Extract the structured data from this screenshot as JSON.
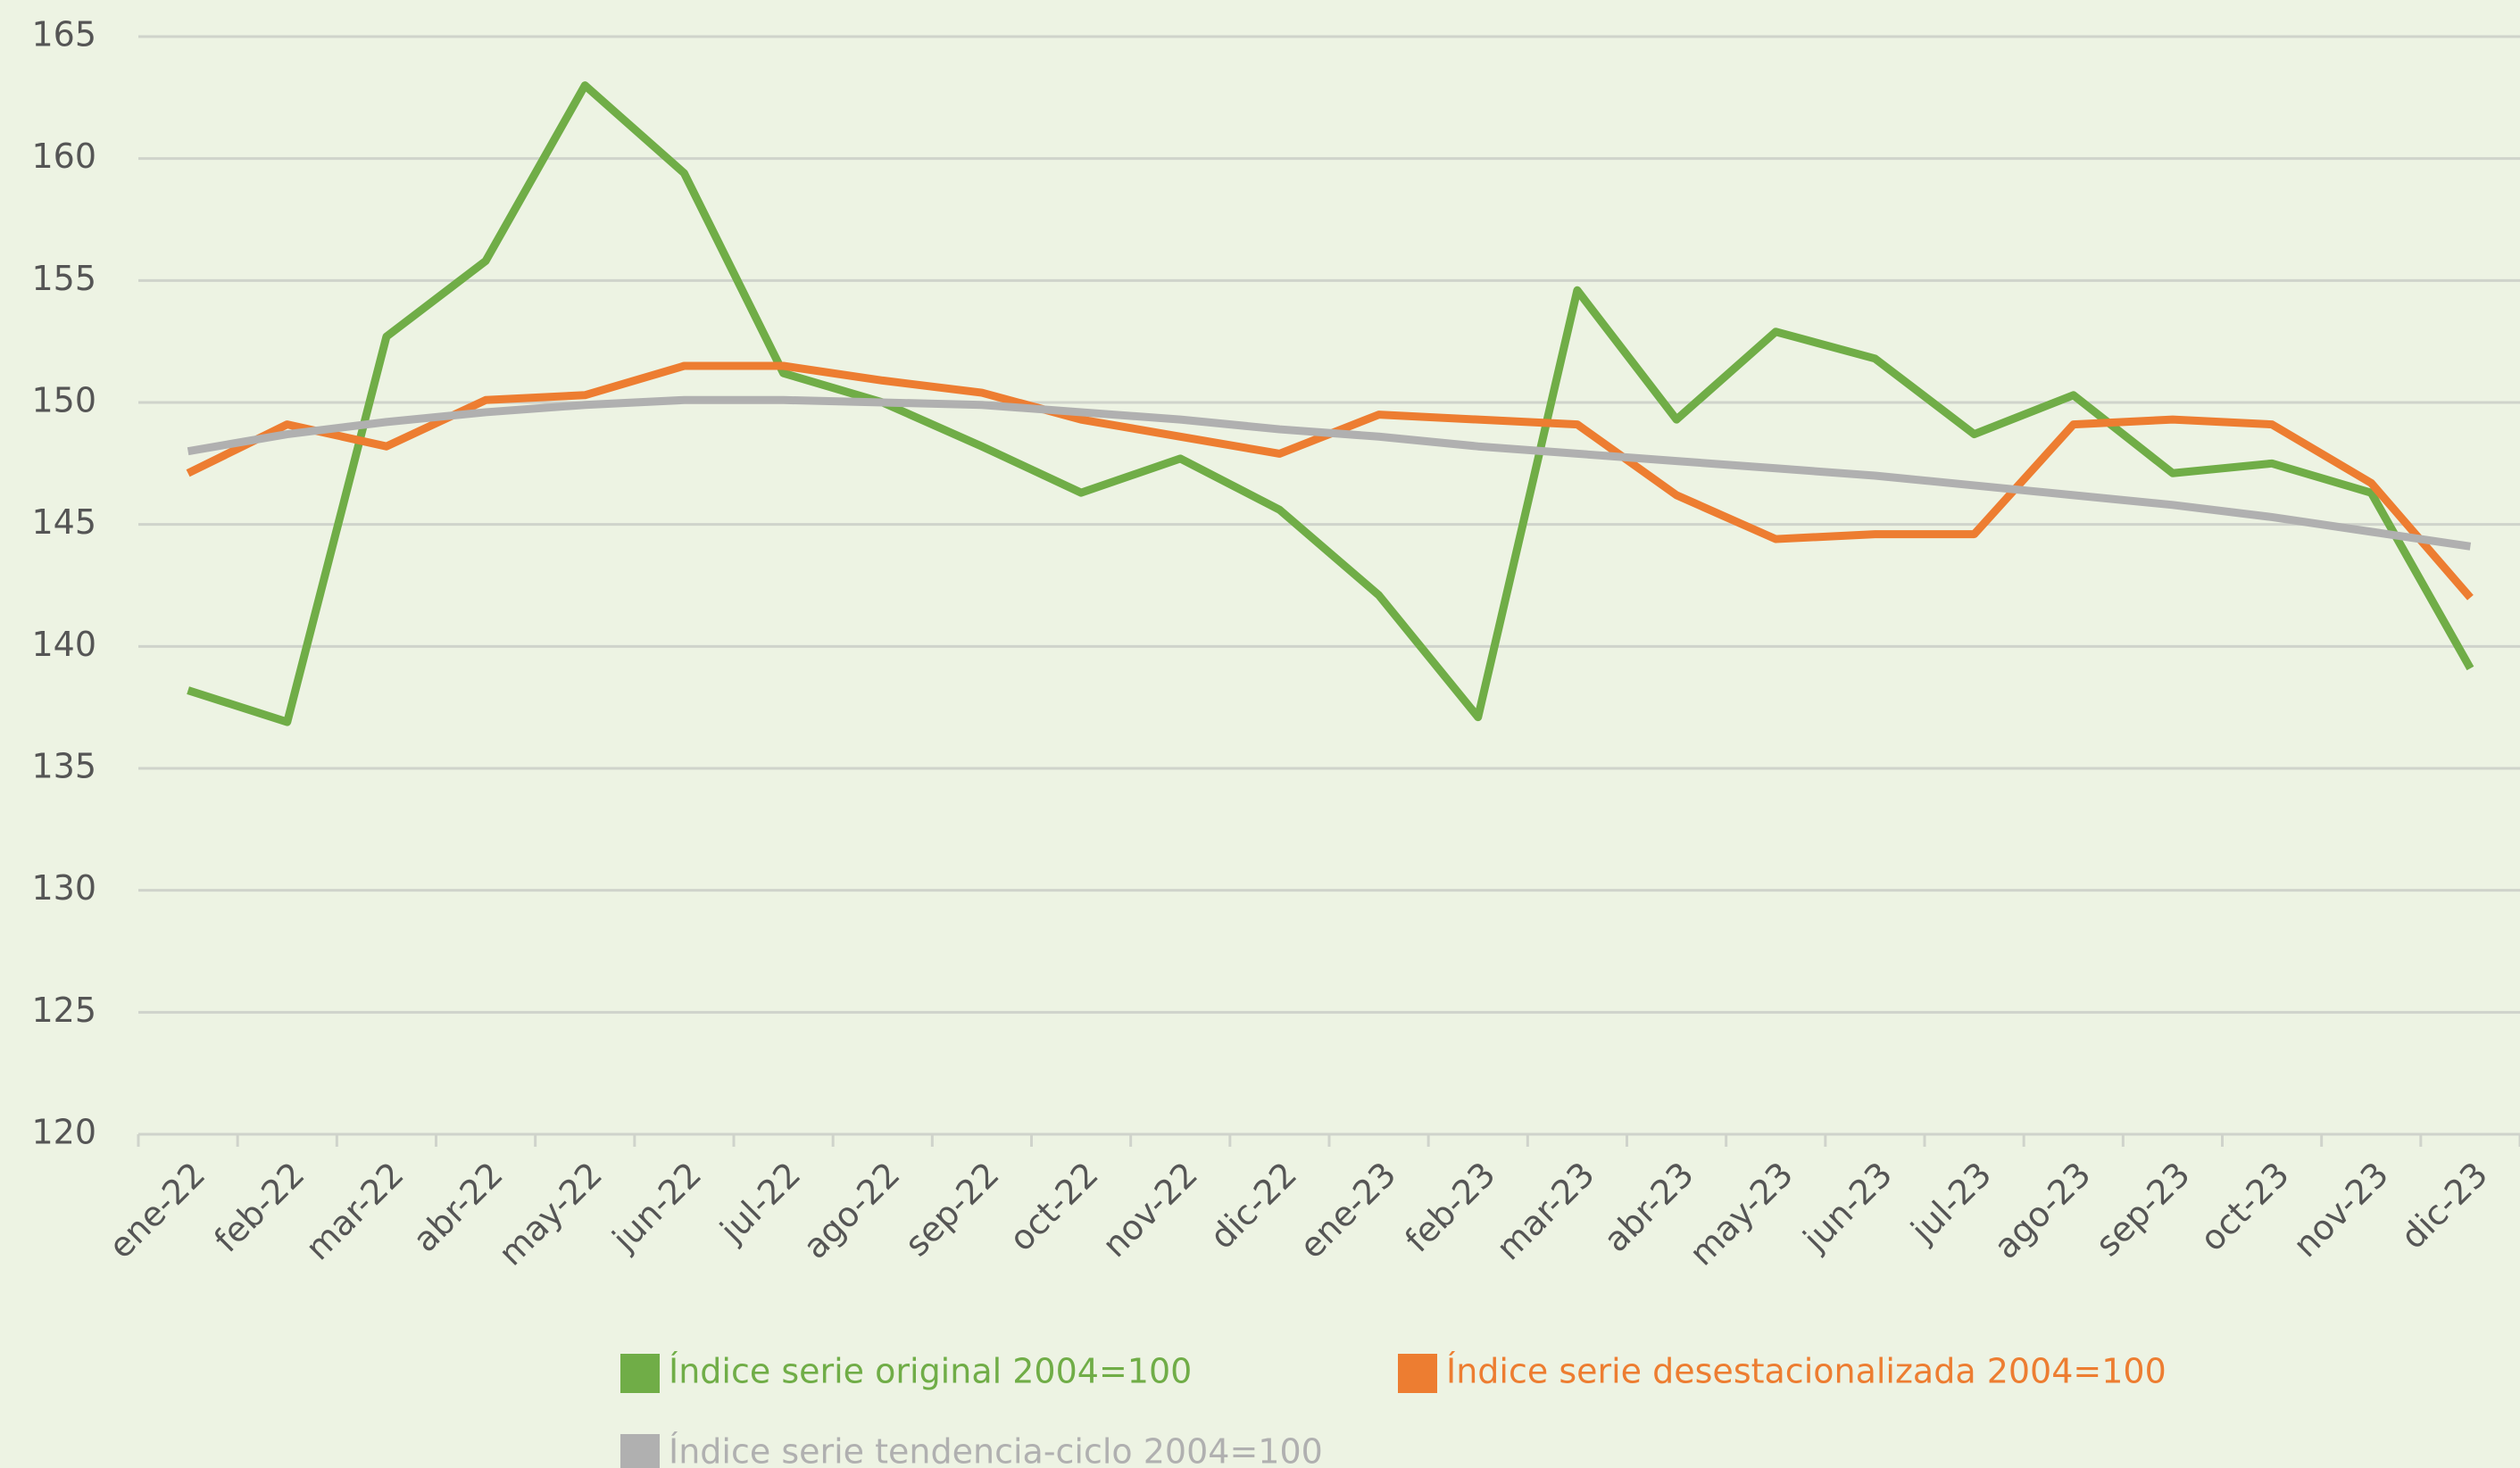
{
  "chart_data": {
    "type": "line",
    "categories": [
      "ene-22",
      "feb-22",
      "mar-22",
      "abr-22",
      "may-22",
      "jun-22",
      "jul-22",
      "ago-22",
      "sep-22",
      "oct-22",
      "nov-22",
      "dic-22",
      "ene-23",
      "feb-23",
      "mar-23",
      "abr-23",
      "may-23",
      "jun-23",
      "jul-23",
      "ago-23",
      "sep-23",
      "oct-23",
      "nov-23",
      "dic-23"
    ],
    "series": [
      {
        "name": "Índice serie original 2004=100",
        "color": "#70ad47",
        "values": [
          138.2,
          136.9,
          152.7,
          155.8,
          163.0,
          159.4,
          151.2,
          150.0,
          148.2,
          146.3,
          147.7,
          145.6,
          142.1,
          137.1,
          154.6,
          149.3,
          152.9,
          151.8,
          148.7,
          150.3,
          147.1,
          147.5,
          146.3,
          139.1
        ]
      },
      {
        "name": "Índice serie desestacionalizada 2004=100",
        "color": "#ed7d31",
        "values": [
          147.1,
          149.1,
          148.2,
          150.1,
          150.3,
          151.5,
          151.5,
          150.9,
          150.4,
          149.3,
          148.6,
          147.9,
          149.5,
          149.3,
          149.1,
          146.2,
          144.4,
          144.6,
          144.6,
          149.1,
          149.3,
          149.1,
          146.7,
          142.0
        ]
      },
      {
        "name": "Índice serie tendencia-ciclo 2004=100",
        "color": "#b0b0b0",
        "values": [
          148.0,
          148.7,
          149.2,
          149.6,
          149.9,
          150.1,
          150.1,
          150.0,
          149.9,
          149.6,
          149.3,
          148.9,
          148.6,
          148.2,
          147.9,
          147.6,
          147.3,
          147.0,
          146.6,
          146.2,
          145.8,
          145.3,
          144.7,
          144.1
        ]
      }
    ],
    "ylim": [
      120,
      165
    ],
    "yticks": [
      120,
      125,
      130,
      135,
      140,
      145,
      150,
      155,
      160,
      165
    ],
    "grid": true
  }
}
